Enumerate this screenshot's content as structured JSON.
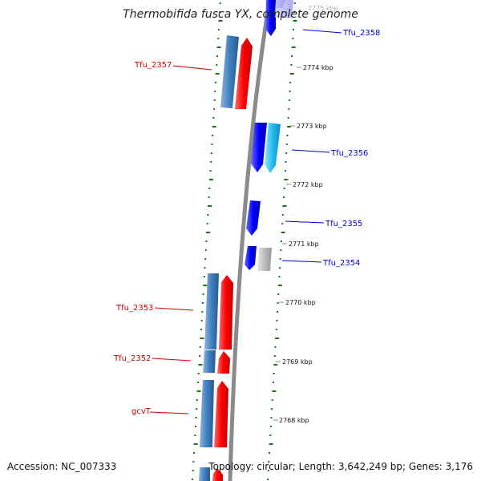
{
  "title": "Thermobifida fusca YX, complete genome",
  "accession_text": "Accession: NC_007333",
  "summary_text": "Topology: circular; Length: 3,642,249 bp; Genes: 3,176",
  "colors": {
    "backbone": "#8a8a8a",
    "gc_ticks": "#117a11",
    "label_red": "#cc0000",
    "label_blue": "#0000cc",
    "gene_red": "#ff0000",
    "gene_blue": "#0000ff",
    "gene_steel": "#3f7fbf",
    "gene_cyan": "#22bbee",
    "gene_grey": "#bdbdbd"
  },
  "scale_labels": [
    {
      "text": "2775 kbp"
    },
    {
      "text": "2774 kbp"
    },
    {
      "text": "2773 kbp"
    },
    {
      "text": "2772 kbp"
    },
    {
      "text": "2771 kbp"
    },
    {
      "text": "2770 kbp"
    },
    {
      "text": "2769 kbp"
    },
    {
      "text": "2768 kbp"
    }
  ],
  "gene_labels": [
    {
      "text": "Tfu_2358"
    },
    {
      "text": "Tfu_2357"
    },
    {
      "text": "Tfu_2356"
    },
    {
      "text": "Tfu_2355"
    },
    {
      "text": "Tfu_2354"
    },
    {
      "text": "Tfu_2353"
    },
    {
      "text": "Tfu_2352"
    },
    {
      "text": "gcvT"
    }
  ]
}
